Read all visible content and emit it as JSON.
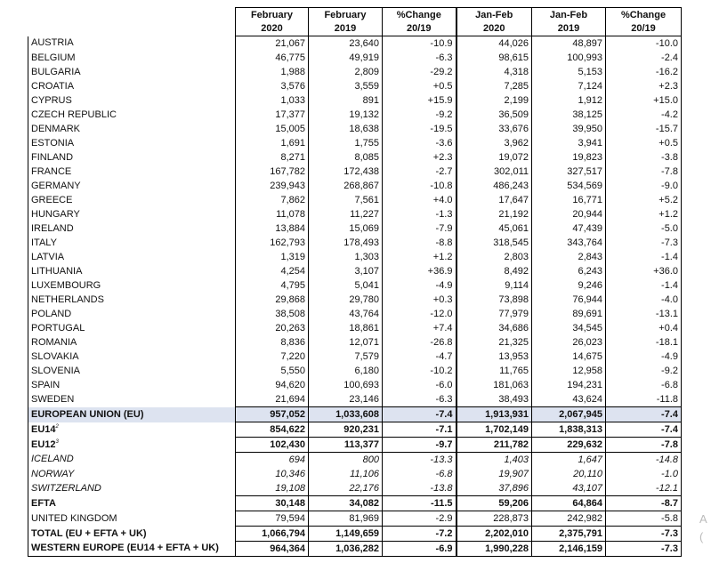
{
  "headers": [
    {
      "line1": "",
      "line2": ""
    },
    {
      "line1": "February",
      "line2": "2020"
    },
    {
      "line1": "February",
      "line2": "2019"
    },
    {
      "line1": "%Change",
      "line2": "20/19"
    },
    {
      "line1": "Jan-Feb",
      "line2": "2020"
    },
    {
      "line1": "Jan-Feb",
      "line2": "2019"
    },
    {
      "line1": "%Change",
      "line2": "20/19"
    }
  ],
  "countries": [
    {
      "name": "AUSTRIA",
      "v": [
        "21,067",
        "23,640",
        "-10.9",
        "44,026",
        "48,897",
        "-10.0"
      ]
    },
    {
      "name": "BELGIUM",
      "v": [
        "46,775",
        "49,919",
        "-6.3",
        "98,615",
        "100,993",
        "-2.4"
      ]
    },
    {
      "name": "BULGARIA",
      "v": [
        "1,988",
        "2,809",
        "-29.2",
        "4,318",
        "5,153",
        "-16.2"
      ]
    },
    {
      "name": "CROATIA",
      "v": [
        "3,576",
        "3,559",
        "+0.5",
        "7,285",
        "7,124",
        "+2.3"
      ]
    },
    {
      "name": "CYPRUS",
      "v": [
        "1,033",
        "891",
        "+15.9",
        "2,199",
        "1,912",
        "+15.0"
      ]
    },
    {
      "name": "CZECH REPUBLIC",
      "v": [
        "17,377",
        "19,132",
        "-9.2",
        "36,509",
        "38,125",
        "-4.2"
      ]
    },
    {
      "name": "DENMARK",
      "v": [
        "15,005",
        "18,638",
        "-19.5",
        "33,676",
        "39,950",
        "-15.7"
      ]
    },
    {
      "name": "ESTONIA",
      "v": [
        "1,691",
        "1,755",
        "-3.6",
        "3,962",
        "3,941",
        "+0.5"
      ]
    },
    {
      "name": "FINLAND",
      "v": [
        "8,271",
        "8,085",
        "+2.3",
        "19,072",
        "19,823",
        "-3.8"
      ]
    },
    {
      "name": "FRANCE",
      "v": [
        "167,782",
        "172,438",
        "-2.7",
        "302,011",
        "327,517",
        "-7.8"
      ]
    },
    {
      "name": "GERMANY",
      "v": [
        "239,943",
        "268,867",
        "-10.8",
        "486,243",
        "534,569",
        "-9.0"
      ]
    },
    {
      "name": "GREECE",
      "v": [
        "7,862",
        "7,561",
        "+4.0",
        "17,647",
        "16,771",
        "+5.2"
      ]
    },
    {
      "name": "HUNGARY",
      "v": [
        "11,078",
        "11,227",
        "-1.3",
        "21,192",
        "20,944",
        "+1.2"
      ]
    },
    {
      "name": "IRELAND",
      "v": [
        "13,884",
        "15,069",
        "-7.9",
        "45,061",
        "47,439",
        "-5.0"
      ]
    },
    {
      "name": "ITALY",
      "v": [
        "162,793",
        "178,493",
        "-8.8",
        "318,545",
        "343,764",
        "-7.3"
      ]
    },
    {
      "name": "LATVIA",
      "v": [
        "1,319",
        "1,303",
        "+1.2",
        "2,803",
        "2,843",
        "-1.4"
      ]
    },
    {
      "name": "LITHUANIA",
      "v": [
        "4,254",
        "3,107",
        "+36.9",
        "8,492",
        "6,243",
        "+36.0"
      ]
    },
    {
      "name": "LUXEMBOURG",
      "v": [
        "4,795",
        "5,041",
        "-4.9",
        "9,114",
        "9,246",
        "-1.4"
      ]
    },
    {
      "name": "NETHERLANDS",
      "v": [
        "29,868",
        "29,780",
        "+0.3",
        "73,898",
        "76,944",
        "-4.0"
      ]
    },
    {
      "name": "POLAND",
      "v": [
        "38,508",
        "43,764",
        "-12.0",
        "77,979",
        "89,691",
        "-13.1"
      ]
    },
    {
      "name": "PORTUGAL",
      "v": [
        "20,263",
        "18,861",
        "+7.4",
        "34,686",
        "34,545",
        "+0.4"
      ]
    },
    {
      "name": "ROMANIA",
      "v": [
        "8,836",
        "12,071",
        "-26.8",
        "21,325",
        "26,023",
        "-18.1"
      ]
    },
    {
      "name": "SLOVAKIA",
      "v": [
        "7,220",
        "7,579",
        "-4.7",
        "13,953",
        "14,675",
        "-4.9"
      ]
    },
    {
      "name": "SLOVENIA",
      "v": [
        "5,550",
        "6,180",
        "-10.2",
        "11,765",
        "12,958",
        "-9.2"
      ]
    },
    {
      "name": "SPAIN",
      "v": [
        "94,620",
        "100,693",
        "-6.0",
        "181,063",
        "194,231",
        "-6.8"
      ]
    },
    {
      "name": "SWEDEN",
      "v": [
        "21,694",
        "23,146",
        "-6.3",
        "38,493",
        "43,624",
        "-11.8"
      ]
    }
  ],
  "eu": {
    "name": "EUROPEAN UNION (EU)",
    "v": [
      "957,052",
      "1,033,608",
      "-7.4",
      "1,913,931",
      "2,067,945",
      "-7.4"
    ]
  },
  "eu14": {
    "name": "EU14",
    "sup": "2",
    "v": [
      "854,622",
      "920,231",
      "-7.1",
      "1,702,149",
      "1,838,313",
      "-7.4"
    ]
  },
  "eu12": {
    "name": "EU12",
    "sup": "3",
    "v": [
      "102,430",
      "113,377",
      "-9.7",
      "211,782",
      "229,632",
      "-7.8"
    ]
  },
  "efta_countries": [
    {
      "name": "ICELAND",
      "v": [
        "694",
        "800",
        "-13.3",
        "1,403",
        "1,647",
        "-14.8"
      ]
    },
    {
      "name": "NORWAY",
      "v": [
        "10,346",
        "11,106",
        "-6.8",
        "19,907",
        "20,110",
        "-1.0"
      ]
    },
    {
      "name": "SWITZERLAND",
      "v": [
        "19,108",
        "22,176",
        "-13.8",
        "37,896",
        "43,107",
        "-12.1"
      ]
    }
  ],
  "efta": {
    "name": "EFTA",
    "v": [
      "30,148",
      "34,082",
      "-11.5",
      "59,206",
      "64,864",
      "-8.7"
    ]
  },
  "uk": {
    "name": "UNITED KINGDOM",
    "v": [
      "79,594",
      "81,969",
      "-2.9",
      "228,873",
      "242,982",
      "-5.8"
    ]
  },
  "total": {
    "name": "TOTAL (EU + EFTA + UK)",
    "v": [
      "1,066,794",
      "1,149,659",
      "-7.2",
      "2,202,010",
      "2,375,791",
      "-7.3"
    ]
  },
  "western": {
    "name": "WESTERN EUROPE (EU14 + EFTA + UK)",
    "v": [
      "964,364",
      "1,036,282",
      "-6.9",
      "1,990,228",
      "2,146,159",
      "-7.3"
    ]
  }
}
